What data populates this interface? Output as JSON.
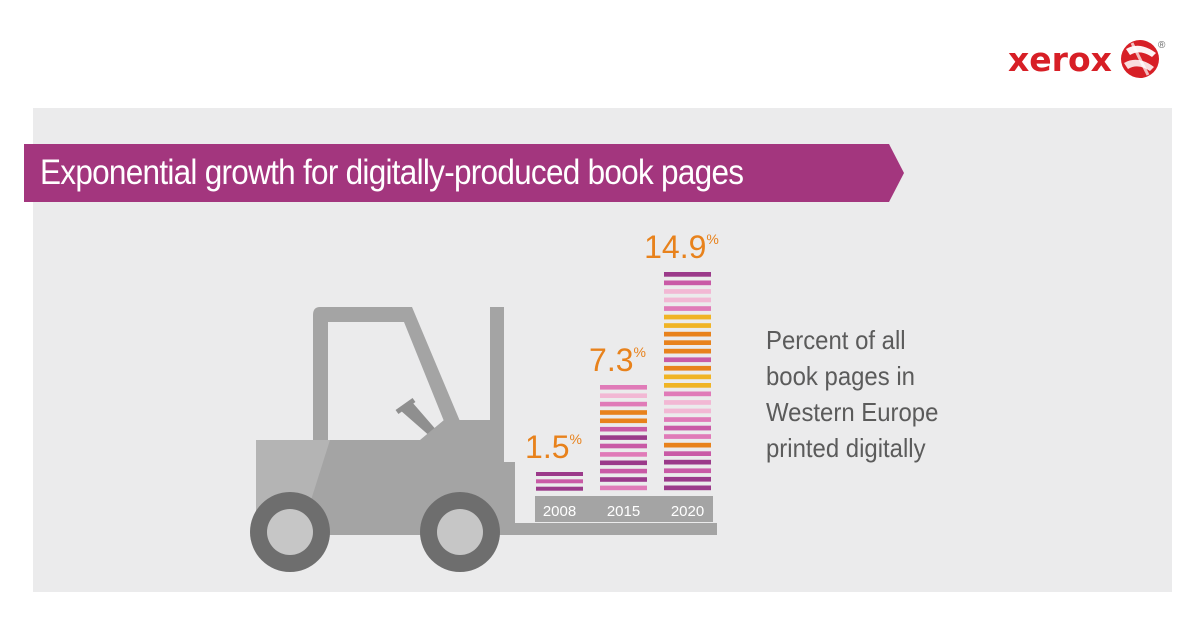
{
  "brand": {
    "name": "xerox",
    "registered": "®"
  },
  "header": {
    "title": "Exponential growth for digitally-produced book pages"
  },
  "caption": {
    "lines": [
      "Percent of all",
      "book pages in",
      "Western Europe",
      "printed digitally"
    ]
  },
  "colors": {
    "brand_red": "#d71f26",
    "banner": "#a3367e",
    "value_label": "#e8821c",
    "panel": "#ebebec",
    "forklift": "#a4a4a4"
  },
  "chart_data": {
    "type": "bar",
    "categories": [
      "2008",
      "2015",
      "2020"
    ],
    "values": [
      1.5,
      7.3,
      14.9
    ],
    "value_labels": [
      "1.5",
      "7.3",
      "14.9"
    ],
    "unit": "%",
    "title": "Exponential growth for digitally-produced book pages",
    "xlabel": "",
    "ylabel": "",
    "ylim": [
      0,
      14.9
    ],
    "grid": false,
    "legend": "none"
  }
}
